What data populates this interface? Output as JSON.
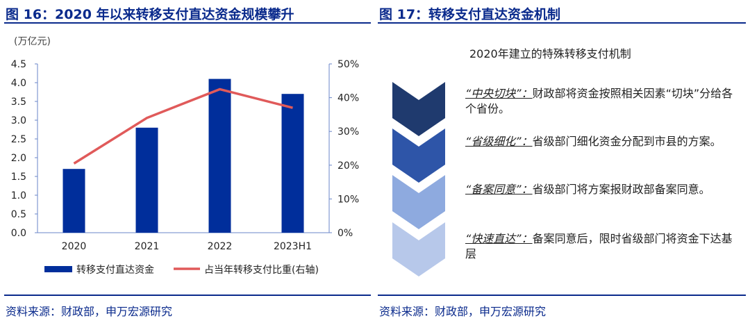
{
  "left": {
    "title": "图 16：2020 年以来转移支付直达资金规模攀升",
    "source": "资料来源：财政部，申万宏源研究"
  },
  "right": {
    "title": "图 17：转移支付直达资金机制",
    "source": "资料来源：财政部，申万宏源研究",
    "flow_title": "2020年建立的特殊转移支付机制",
    "steps": [
      {
        "key": "“中央切块”：",
        "text": "财政部将资金按照相关因素“切块”分给各个省份。",
        "color": "#1f3a6e"
      },
      {
        "key": "“省级细化”：",
        "text": "省级部门细化资金分配到市县的方案。",
        "color": "#2e55a8"
      },
      {
        "key": "“备案同意”：",
        "text": "省级部门将方案报财政部备案同意。",
        "color": "#8eaadf"
      },
      {
        "key": "“快速直达”：",
        "text": "备案同意后，限时省级部门将资金下达基层",
        "color": "#b7c8ea"
      }
    ]
  },
  "chart_data": {
    "type": "bar+line",
    "unit_label": "(万亿元)",
    "categories": [
      "2020",
      "2021",
      "2022",
      "2023H1"
    ],
    "series": [
      {
        "name": "转移支付直达资金",
        "type": "bar",
        "axis": "left",
        "color": "#002e9b",
        "values": [
          1.7,
          2.8,
          4.1,
          3.7
        ]
      },
      {
        "name": "占当年转移支付比重(右轴)",
        "type": "line",
        "axis": "right",
        "color": "#e05a5a",
        "values": [
          20.5,
          34,
          42.5,
          37
        ]
      }
    ],
    "left_axis": {
      "min": 0,
      "max": 4.5,
      "ticks": [
        "0.0",
        "0.5",
        "1.0",
        "1.5",
        "2.0",
        "2.5",
        "3.0",
        "3.5",
        "4.0",
        "4.5"
      ]
    },
    "right_axis": {
      "min": 0,
      "max": 50,
      "ticks": [
        "0%",
        "10%",
        "20%",
        "30%",
        "40%",
        "50%"
      ]
    },
    "legend_position": "bottom"
  }
}
